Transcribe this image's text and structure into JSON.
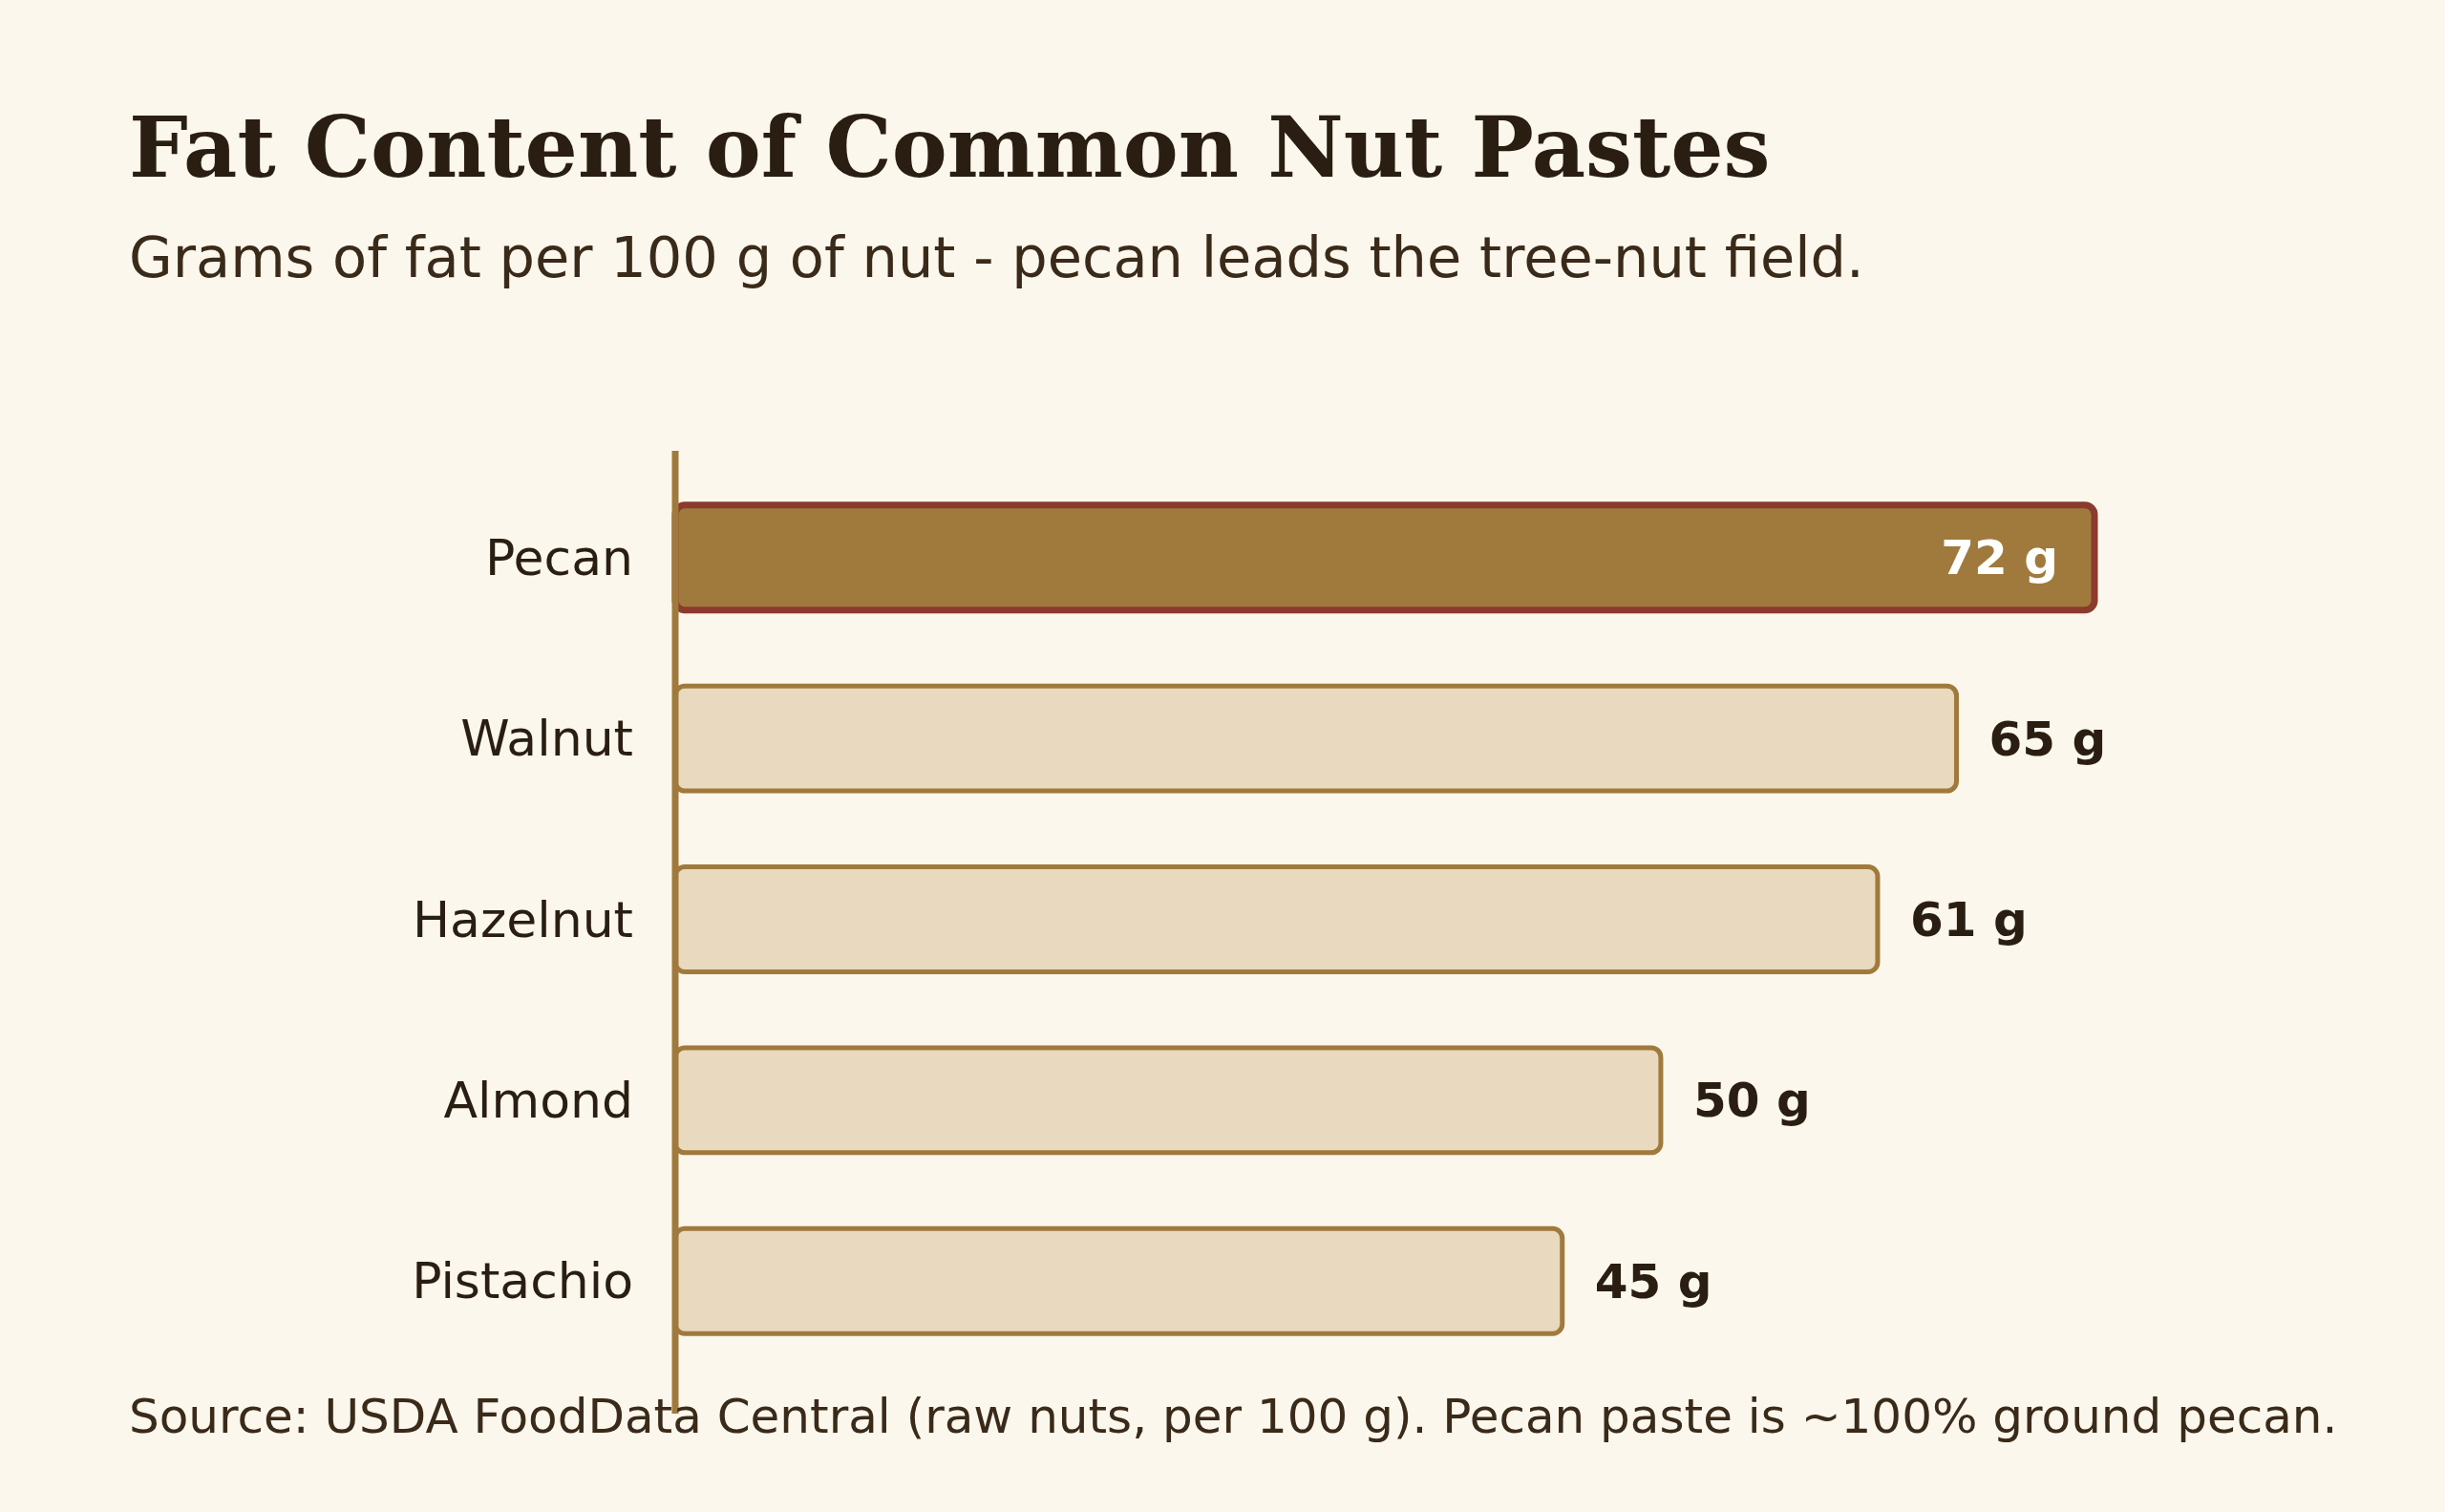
{
  "chart_data": {
    "type": "bar",
    "orientation": "horizontal",
    "title": "Fat Content of Common Nut Pastes",
    "subtitle": "Grams of fat per 100 g of nut - pecan leads the tree-nut field.",
    "categories": [
      "Pecan",
      "Walnut",
      "Hazelnut",
      "Almond",
      "Pistachio"
    ],
    "values": [
      72,
      65,
      61,
      50,
      45
    ],
    "colors": [
      "#a07a3c",
      "#e8d9bf",
      "#e8d9bf",
      "#e8d9bf",
      "#e8d9bf"
    ],
    "value_labels": [
      "72 g",
      "65 g",
      "61 g",
      "50 g",
      "45 g"
    ],
    "annotations": [
      "Source: USDA FoodData Central (raw nuts, per 100 g). Pecan paste is ~100% ground pecan."
    ]
  }
}
